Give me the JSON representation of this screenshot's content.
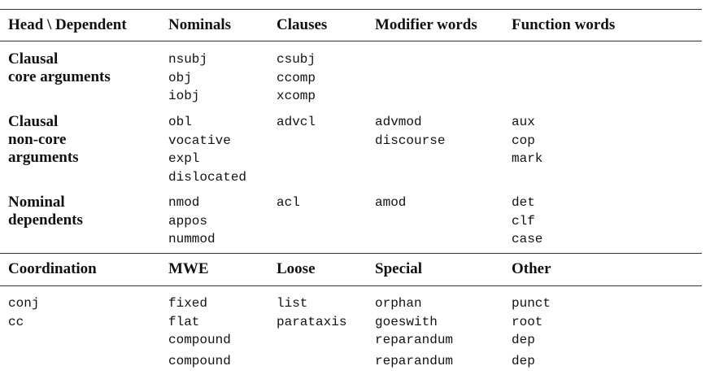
{
  "table": {
    "header1": [
      "Head \\ Dependent",
      "Nominals",
      "Clauses",
      "Modifier words",
      "Function words"
    ],
    "rows1": [
      {
        "label": "Clausal\ncore arguments",
        "cells": [
          [
            "nsubj",
            "obj",
            "iobj"
          ],
          [
            "csubj",
            "ccomp",
            "xcomp"
          ],
          [],
          []
        ]
      },
      {
        "label": "Clausal\nnon-core\narguments",
        "cells": [
          [
            "obl",
            "vocative",
            "expl",
            "dislocated"
          ],
          [
            "advcl"
          ],
          [
            "advmod",
            "discourse"
          ],
          [
            "aux",
            "cop",
            "mark"
          ]
        ]
      },
      {
        "label": "Nominal\ndependents",
        "cells": [
          [
            "nmod",
            "appos",
            "nummod"
          ],
          [
            "acl"
          ],
          [
            "amod"
          ],
          [
            "det",
            "clf",
            "case"
          ]
        ]
      }
    ],
    "header2": [
      "Coordination",
      "MWE",
      "Loose",
      "Special",
      "Other"
    ],
    "rows2": [
      {
        "cells": [
          [
            "conj",
            "cc"
          ],
          [
            "fixed",
            "flat",
            "compound",
            "compound"
          ],
          [
            "list",
            "parataxis"
          ],
          [
            "orphan",
            "goeswith",
            "reparandum",
            "reparandum"
          ],
          [
            "punct",
            "root",
            "dep",
            "dep"
          ]
        ]
      }
    ]
  }
}
